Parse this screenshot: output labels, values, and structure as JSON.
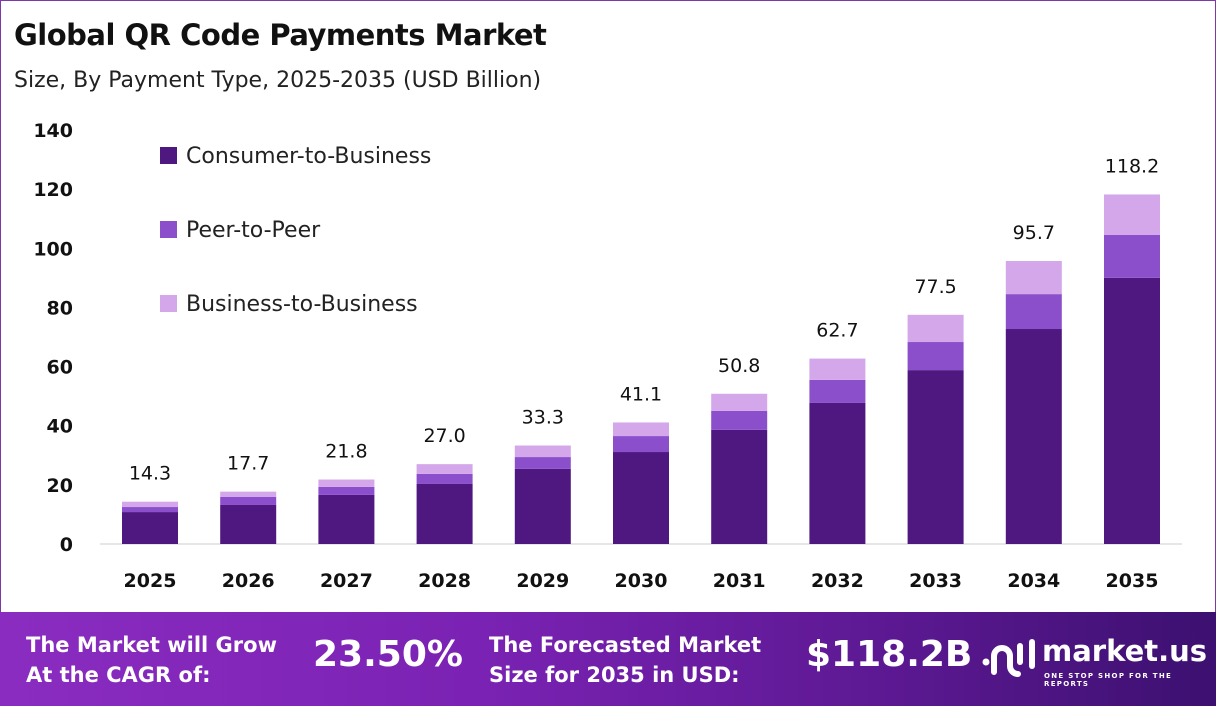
{
  "chart_data": {
    "type": "bar",
    "stacked": true,
    "title": "Global QR Code Payments Market",
    "subtitle": "Size, By Payment Type, 2025-2035 (USD Billion)",
    "categories": [
      "2025",
      "2026",
      "2027",
      "2028",
      "2029",
      "2030",
      "2031",
      "2032",
      "2033",
      "2034",
      "2035"
    ],
    "series": [
      {
        "name": "Consumer-to-Business",
        "color": "#4e1880",
        "values": [
          10.8,
          13.2,
          16.6,
          20.3,
          25.4,
          31.1,
          38.6,
          47.7,
          58.8,
          72.7,
          90.0
        ]
      },
      {
        "name": "Peer-to-Peer",
        "color": "#8b4fcb",
        "values": [
          1.7,
          2.7,
          2.7,
          3.4,
          4.0,
          5.4,
          6.4,
          7.8,
          9.5,
          11.8,
          14.5
        ]
      },
      {
        "name": "Business-to-Business",
        "color": "#d4a6ea",
        "values": [
          1.8,
          1.8,
          2.5,
          3.3,
          3.9,
          4.6,
          5.8,
          7.2,
          9.2,
          11.2,
          13.7
        ]
      }
    ],
    "totals": [
      "14.3",
      "17.7",
      "21.8",
      "27.0",
      "33.3",
      "41.1",
      "50.8",
      "62.7",
      "77.5",
      "95.7",
      "118.2"
    ],
    "ylim": [
      0,
      140
    ],
    "yticks": [
      "0",
      "20",
      "40",
      "60",
      "80",
      "100",
      "120",
      "140"
    ],
    "grid": false,
    "legend": "top-left"
  },
  "footer": {
    "cagr_label_1": "The Market will Grow",
    "cagr_label_2": "At the CAGR of:",
    "cagr_value": "23.50%",
    "forecast_label_1": "The Forecasted Market",
    "forecast_label_2": "Size for 2035 in USD:",
    "forecast_value": "$118.2B"
  },
  "logo": {
    "name": "market.us",
    "tagline": "ONE STOP SHOP FOR THE REPORTS"
  }
}
